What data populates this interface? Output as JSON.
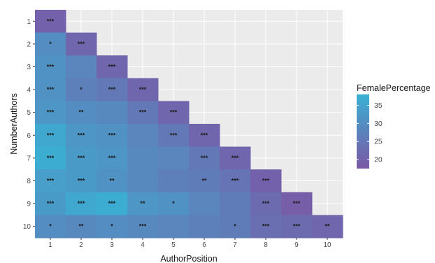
{
  "chart_data": {
    "type": "heatmap",
    "xlabel": "AuthorPosition",
    "ylabel": "NumberAuthors",
    "x_categories": [
      "1",
      "2",
      "3",
      "4",
      "5",
      "6",
      "7",
      "8",
      "9",
      "10"
    ],
    "y_categories": [
      "1",
      "2",
      "3",
      "4",
      "5",
      "6",
      "7",
      "8",
      "9",
      "10"
    ],
    "legend": {
      "title": "FemalePercentage",
      "ticks": [
        20,
        25,
        30,
        35
      ],
      "tick_labels": [
        "20",
        "25",
        "30",
        "35"
      ],
      "range": [
        17.5,
        38
      ],
      "color_low": "#7b57a5",
      "color_high": "#3ab0d3",
      "placement": "right"
    },
    "grid": true,
    "panel_background": "#ebebeb",
    "rows": [
      {
        "authors": "1",
        "values": [
          20
        ],
        "signif": [
          "***"
        ]
      },
      {
        "authors": "2",
        "values": [
          30,
          21
        ],
        "signif": [
          "*",
          "***"
        ]
      },
      {
        "authors": "3",
        "values": [
          31,
          28,
          21
        ],
        "signif": [
          "***",
          "",
          "***"
        ]
      },
      {
        "authors": "4",
        "values": [
          31,
          27,
          25,
          21
        ],
        "signif": [
          "***",
          "*",
          "***",
          "***"
        ]
      },
      {
        "authors": "5",
        "values": [
          32,
          30,
          29,
          25,
          21
        ],
        "signif": [
          "***",
          "**",
          "",
          "***",
          "***"
        ]
      },
      {
        "authors": "6",
        "values": [
          36,
          32,
          31,
          28,
          25,
          21
        ],
        "signif": [
          "***",
          "***",
          "***",
          "",
          "***",
          "***"
        ]
      },
      {
        "authors": "7",
        "values": [
          37,
          33,
          32,
          29,
          28,
          25,
          21
        ],
        "signif": [
          "***",
          "***",
          "***",
          "",
          "",
          "***",
          "***"
        ]
      },
      {
        "authors": "8",
        "values": [
          34,
          33,
          31,
          29,
          27,
          26,
          24,
          20
        ],
        "signif": [
          "***",
          "***",
          "**",
          "",
          "",
          "**",
          "***",
          "***"
        ]
      },
      {
        "authors": "9",
        "values": [
          33,
          36,
          37,
          32,
          31,
          28,
          26,
          22,
          19
        ],
        "signif": [
          "***",
          "***",
          "***",
          "**",
          "*",
          "",
          "",
          "***",
          "***"
        ]
      },
      {
        "authors": "10",
        "values": [
          30,
          29,
          30,
          29,
          28,
          27,
          26,
          23,
          22,
          21
        ],
        "signif": [
          "*",
          "**",
          "*",
          "***",
          "",
          "",
          "*",
          "***",
          "***",
          "**"
        ]
      }
    ]
  }
}
